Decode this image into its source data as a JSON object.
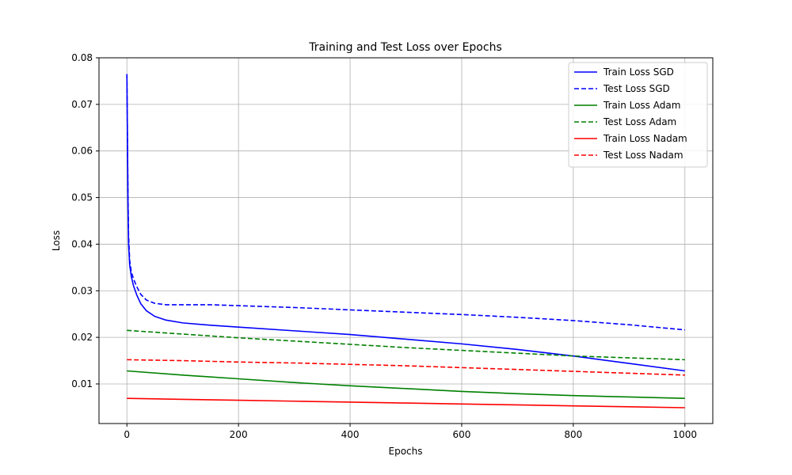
{
  "chart_data": {
    "type": "line",
    "title": "Training and Test Loss over Epochs",
    "xlabel": "Epochs",
    "ylabel": "Loss",
    "xlim": [
      -50,
      1050
    ],
    "ylim": [
      0.0015,
      0.08
    ],
    "xticks": [
      0,
      200,
      400,
      600,
      800,
      1000
    ],
    "yticks": [
      0.01,
      0.02,
      0.03,
      0.04,
      0.05,
      0.06,
      0.07,
      0.08
    ],
    "xtick_labels": [
      "0",
      "200",
      "400",
      "600",
      "800",
      "1000"
    ],
    "ytick_labels": [
      "0.01",
      "0.02",
      "0.03",
      "0.04",
      "0.05",
      "0.06",
      "0.07",
      "0.08"
    ],
    "grid": true,
    "legend_position": "top-right",
    "series": [
      {
        "name": "Train Loss SGD",
        "color": "#0000ff",
        "dash": "solid",
        "x": [
          0,
          1,
          2,
          3,
          5,
          8,
          12,
          18,
          25,
          35,
          50,
          70,
          100,
          150,
          200,
          300,
          400,
          500,
          600,
          700,
          800,
          900,
          1000
        ],
        "y": [
          0.0765,
          0.062,
          0.048,
          0.04,
          0.0355,
          0.033,
          0.031,
          0.029,
          0.0272,
          0.0257,
          0.0245,
          0.0237,
          0.0231,
          0.0226,
          0.0222,
          0.0214,
          0.0206,
          0.0196,
          0.0186,
          0.0174,
          0.016,
          0.0144,
          0.0128
        ]
      },
      {
        "name": "Test Loss SGD",
        "color": "#0000ff",
        "dash": "dashed",
        "x": [
          0,
          1,
          2,
          3,
          5,
          8,
          12,
          18,
          25,
          35,
          50,
          70,
          100,
          150,
          200,
          300,
          400,
          500,
          600,
          700,
          800,
          900,
          1000
        ],
        "y": [
          0.0765,
          0.063,
          0.05,
          0.042,
          0.0365,
          0.034,
          0.0325,
          0.0308,
          0.0292,
          0.028,
          0.0273,
          0.027,
          0.027,
          0.027,
          0.0268,
          0.0264,
          0.0259,
          0.0254,
          0.0249,
          0.0243,
          0.0236,
          0.0227,
          0.0216
        ]
      },
      {
        "name": "Train Loss Adam",
        "color": "#008000",
        "dash": "solid",
        "x": [
          0,
          100,
          200,
          300,
          400,
          500,
          600,
          700,
          800,
          900,
          1000
        ],
        "y": [
          0.0128,
          0.0119,
          0.0111,
          0.0103,
          0.0096,
          0.009,
          0.0084,
          0.0079,
          0.0075,
          0.0072,
          0.0069
        ]
      },
      {
        "name": "Test Loss Adam",
        "color": "#008000",
        "dash": "dashed",
        "x": [
          0,
          100,
          200,
          300,
          400,
          500,
          600,
          700,
          800,
          900,
          1000
        ],
        "y": [
          0.0215,
          0.0207,
          0.0199,
          0.0192,
          0.0185,
          0.0178,
          0.0172,
          0.0166,
          0.016,
          0.0156,
          0.0152
        ]
      },
      {
        "name": "Train Loss Nadam",
        "color": "#ff0000",
        "dash": "solid",
        "x": [
          0,
          100,
          200,
          300,
          400,
          500,
          600,
          700,
          800,
          900,
          1000
        ],
        "y": [
          0.0069,
          0.0067,
          0.0065,
          0.0063,
          0.0061,
          0.0059,
          0.0057,
          0.0055,
          0.0053,
          0.0051,
          0.0049
        ]
      },
      {
        "name": "Test Loss Nadam",
        "color": "#ff0000",
        "dash": "dashed",
        "x": [
          0,
          100,
          200,
          300,
          400,
          500,
          600,
          700,
          800,
          900,
          1000
        ],
        "y": [
          0.0152,
          0.015,
          0.0147,
          0.0145,
          0.0142,
          0.0139,
          0.0135,
          0.0131,
          0.0127,
          0.0123,
          0.0119
        ]
      }
    ]
  }
}
